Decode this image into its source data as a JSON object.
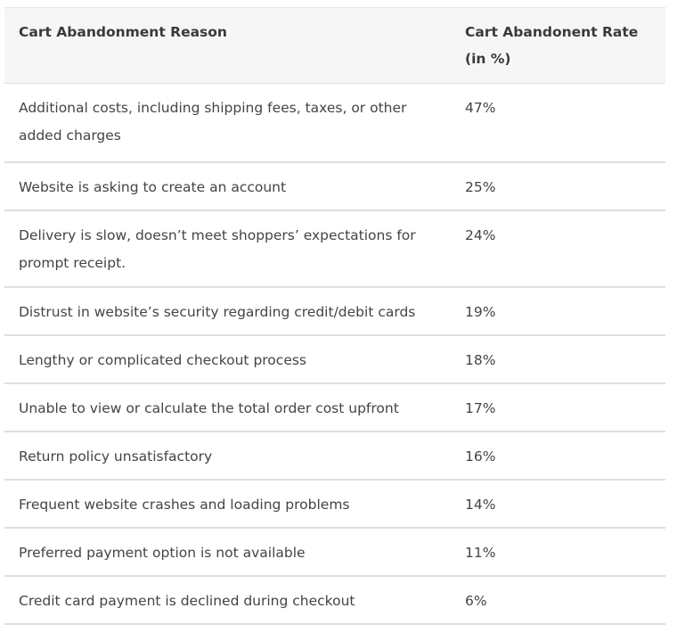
{
  "table": {
    "headers": {
      "reason": "Cart Abandonment Reason",
      "rate": "Cart Abandonent Rate (in %)"
    },
    "rows": [
      {
        "reason": "Additional costs, including shipping fees, taxes, or other added charges",
        "rate": "47%"
      },
      {
        "reason": "Website is asking to create an account",
        "rate": "25%"
      },
      {
        "reason": "Delivery is slow, doesn’t meet shoppers’ expectations for prompt receipt.",
        "rate": "24%"
      },
      {
        "reason": "Distrust in website’s security regarding credit/debit cards",
        "rate": "19%"
      },
      {
        "reason": "Lengthy or complicated checkout process",
        "rate": "18%"
      },
      {
        "reason": "Unable to view or calculate the total order cost upfront",
        "rate": "17%"
      },
      {
        "reason": "Return policy unsatisfactory",
        "rate": "16%"
      },
      {
        "reason": "Frequent website crashes and loading problems",
        "rate": "14%"
      },
      {
        "reason": "Preferred payment option is not available",
        "rate": "11%"
      },
      {
        "reason": "Credit card payment is declined during checkout",
        "rate": "6%"
      }
    ]
  }
}
